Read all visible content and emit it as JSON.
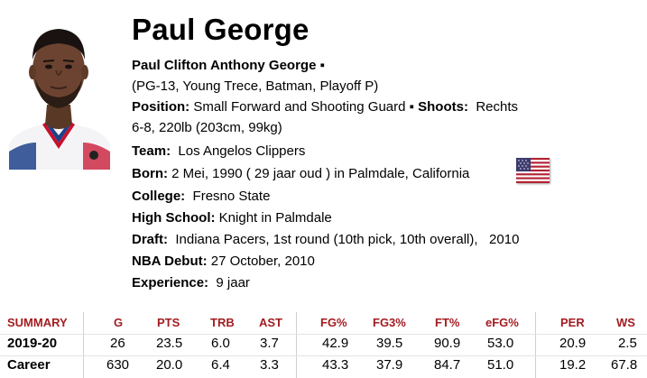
{
  "player": {
    "name": "Paul George",
    "full_name": "Paul Clifton Anthony George",
    "full_name_suffix": "▪",
    "nicknames": "(PG-13, Young Trece, Batman, Playoff P)",
    "position_label": "Position:",
    "position_value": "Small Forward and Shooting Guard",
    "bullet": "▪",
    "shoots_label": "Shoots:",
    "shoots_value": "Rechts",
    "size": "6-8, 220lb (203cm, 99kg)",
    "team_label": "Team:",
    "team_value": "Los Angelos Clippers",
    "born_label": "Born:",
    "born_date": "2 Mei, 1990",
    "born_age": "(  29 jaar oud  )",
    "born_in": "in Palmdale,",
    "born_state": "California",
    "college_label": "College:",
    "college_value": "Fresno State",
    "highschool_label": "High School:",
    "highschool_value": "Knight in Palmdale",
    "draft_label": "Draft:",
    "draft_value": "Indiana Pacers, 1st round (10th pick, 10th overall),",
    "draft_year": "2010",
    "debut_label": "NBA Debut:",
    "debut_value": "27 October, 2010",
    "experience_label": "Experience:",
    "experience_value": "9 jaar",
    "flag_icon": "usa-flag-icon"
  },
  "stats": {
    "headers": [
      "SUMMARY",
      "G",
      "PTS",
      "TRB",
      "AST",
      "FG%",
      "FG3%",
      "FT%",
      "eFG%",
      "PER",
      "WS"
    ],
    "rows": [
      {
        "label": "2019-20",
        "values": [
          "26",
          "23.5",
          "6.0",
          "3.7",
          "42.9",
          "39.5",
          "90.9",
          "53.0",
          "20.9",
          "2.5"
        ]
      },
      {
        "label": "Career",
        "values": [
          "630",
          "20.0",
          "6.4",
          "3.3",
          "43.3",
          "37.9",
          "84.7",
          "51.0",
          "19.2",
          "67.8"
        ]
      }
    ]
  },
  "colors": {
    "header_red": "#a31c21",
    "jersey_blue": "#1d428a",
    "jersey_red": "#c8102e"
  }
}
